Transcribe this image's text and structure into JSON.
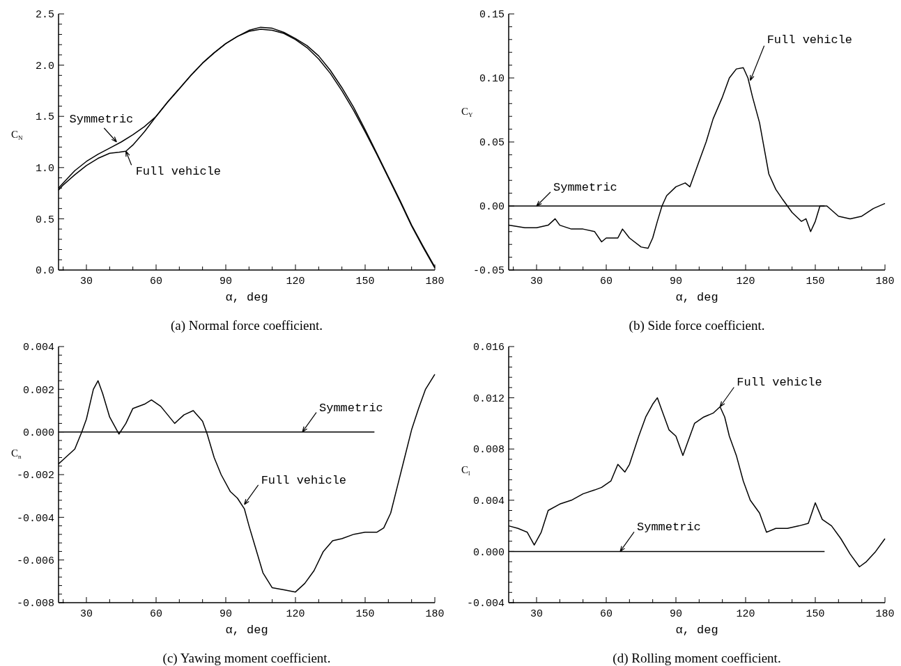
{
  "chart_data": [
    {
      "type": "line",
      "title": "(a) Normal force coefficient.",
      "xlabel": "α, deg",
      "ylabel": "C$_{N}$",
      "xlim": [
        18,
        180
      ],
      "ylim": [
        0,
        2.5
      ],
      "grid": false,
      "line_style": "solid",
      "marker": "none",
      "xticks": [
        {
          "value": 20,
          "label": null
        },
        30,
        {
          "value": 40,
          "label": null
        },
        {
          "value": 50,
          "label": null
        },
        60,
        {
          "value": 70,
          "label": null
        },
        {
          "value": 80,
          "label": null
        },
        90,
        {
          "value": 100,
          "label": null
        },
        {
          "value": 110,
          "label": null
        },
        120,
        {
          "value": 130,
          "label": null
        },
        {
          "value": 140,
          "label": null
        },
        150,
        {
          "value": 160,
          "label": null
        },
        {
          "value": 170,
          "label": null
        },
        180
      ],
      "yticks": [
        {
          "value": 0,
          "label": "0.0"
        },
        {
          "value": 0.1,
          "label": null
        },
        {
          "value": 0.2,
          "label": null
        },
        {
          "value": 0.3,
          "label": null
        },
        {
          "value": 0.4,
          "label": null
        },
        {
          "value": 0.5,
          "label": "0.5"
        },
        {
          "value": 0.6,
          "label": null
        },
        {
          "value": 0.7,
          "label": null
        },
        {
          "value": 0.8,
          "label": null
        },
        {
          "value": 0.9,
          "label": null
        },
        {
          "value": 1,
          "label": "1.0"
        },
        {
          "value": 1.1,
          "label": null
        },
        {
          "value": 1.2,
          "label": null
        },
        {
          "value": 1.3,
          "label": null
        },
        {
          "value": 1.4,
          "label": null
        },
        {
          "value": 1.5,
          "label": "1.5"
        },
        {
          "value": 1.6,
          "label": null
        },
        {
          "value": 1.7,
          "label": null
        },
        {
          "value": 1.8,
          "label": null
        },
        {
          "value": 1.9,
          "label": null
        },
        {
          "value": 2,
          "label": "2.0"
        },
        {
          "value": 2.1,
          "label": null
        },
        {
          "value": 2.2,
          "label": null
        },
        {
          "value": 2.3,
          "label": null
        },
        {
          "value": 2.4,
          "label": null
        },
        {
          "value": 2.5,
          "label": "2.5"
        }
      ],
      "series": [
        {
          "color": "#000000",
          "x": [
            18,
            20,
            25,
            30,
            35,
            40,
            44,
            47,
            50,
            55,
            60,
            65,
            70,
            75,
            80,
            85,
            90,
            95,
            100,
            105,
            110,
            115,
            120,
            125,
            130,
            135,
            140,
            145,
            150,
            155,
            160,
            165,
            170,
            175,
            180
          ],
          "values": [
            0.78,
            0.83,
            0.93,
            1.02,
            1.09,
            1.14,
            1.15,
            1.16,
            1.22,
            1.35,
            1.5,
            1.64,
            1.77,
            1.9,
            2.02,
            2.12,
            2.21,
            2.28,
            2.33,
            2.35,
            2.34,
            2.31,
            2.25,
            2.17,
            2.06,
            1.92,
            1.75,
            1.56,
            1.35,
            1.13,
            0.9,
            0.67,
            0.43,
            0.22,
            0.02
          ]
        },
        {
          "color": "#000000",
          "x": [
            18,
            20,
            25,
            30,
            35,
            40,
            45,
            50,
            55,
            60,
            65,
            70,
            75,
            80,
            85,
            90,
            95,
            100,
            105,
            110,
            115,
            120,
            125,
            130,
            135,
            140,
            145,
            150,
            155,
            160,
            165,
            170,
            175,
            180
          ],
          "values": [
            0.8,
            0.85,
            0.97,
            1.06,
            1.13,
            1.19,
            1.25,
            1.32,
            1.4,
            1.5,
            1.64,
            1.77,
            1.9,
            2.02,
            2.12,
            2.21,
            2.28,
            2.34,
            2.37,
            2.36,
            2.32,
            2.26,
            2.19,
            2.09,
            1.95,
            1.78,
            1.59,
            1.37,
            1.14,
            0.91,
            0.68,
            0.44,
            0.23,
            0.03
          ]
        }
      ],
      "annotations": [
        {
          "text": "Symmetric",
          "x": 43,
          "y": 1.25
        },
        {
          "text": "Full vehicle",
          "x": 47,
          "y": 1.16
        }
      ]
    },
    {
      "type": "line",
      "title": "(b) Side force coefficient.",
      "xlabel": "α, deg",
      "ylabel": "C$_{Y}$",
      "xlim": [
        18,
        180
      ],
      "ylim": [
        -0.05,
        0.15
      ],
      "grid": false,
      "line_style": "solid",
      "marker": "none",
      "xticks": [
        {
          "value": 20,
          "label": null
        },
        30,
        {
          "value": 40,
          "label": null
        },
        {
          "value": 50,
          "label": null
        },
        60,
        {
          "value": 70,
          "label": null
        },
        {
          "value": 80,
          "label": null
        },
        90,
        {
          "value": 100,
          "label": null
        },
        {
          "value": 110,
          "label": null
        },
        120,
        {
          "value": 130,
          "label": null
        },
        {
          "value": 140,
          "label": null
        },
        150,
        {
          "value": 160,
          "label": null
        },
        {
          "value": 170,
          "label": null
        },
        180
      ],
      "yticks": [
        {
          "value": -0.05,
          "label": "-0.05"
        },
        {
          "value": -0.04,
          "label": null
        },
        {
          "value": -0.03,
          "label": null
        },
        {
          "value": -0.02,
          "label": null
        },
        {
          "value": -0.01,
          "label": null
        },
        {
          "value": 0,
          "label": "0.00"
        },
        {
          "value": 0.01,
          "label": null
        },
        {
          "value": 0.02,
          "label": null
        },
        {
          "value": 0.03,
          "label": null
        },
        {
          "value": 0.04,
          "label": null
        },
        {
          "value": 0.05,
          "label": "0.05"
        },
        {
          "value": 0.06,
          "label": null
        },
        {
          "value": 0.07,
          "label": null
        },
        {
          "value": 0.08,
          "label": null
        },
        {
          "value": 0.09,
          "label": null
        },
        {
          "value": 0.1,
          "label": "0.10"
        },
        {
          "value": 0.11,
          "label": null
        },
        {
          "value": 0.12,
          "label": null
        },
        {
          "value": 0.13,
          "label": null
        },
        {
          "value": 0.14,
          "label": null
        },
        {
          "value": 0.15,
          "label": "0.15"
        }
      ],
      "series": [
        {
          "color": "#000000",
          "x": [
            18,
            25,
            30,
            35,
            38,
            40,
            45,
            50,
            55,
            58,
            60,
            65,
            67,
            70,
            75,
            78,
            80,
            82,
            84,
            86,
            90,
            94,
            96,
            98,
            100,
            103,
            106,
            110,
            113,
            116,
            119,
            121,
            123,
            126,
            128,
            130,
            133,
            136,
            140,
            144,
            146,
            148,
            150,
            152,
            155,
            160,
            165,
            170,
            175,
            180
          ],
          "values": [
            -0.015,
            -0.017,
            -0.017,
            -0.015,
            -0.01,
            -0.015,
            -0.018,
            -0.018,
            -0.02,
            -0.028,
            -0.025,
            -0.025,
            -0.018,
            -0.025,
            -0.032,
            -0.033,
            -0.025,
            -0.012,
            0,
            0.008,
            0.015,
            0.018,
            0.015,
            0.025,
            0.035,
            0.05,
            0.068,
            0.085,
            0.1,
            0.107,
            0.108,
            0.1,
            0.085,
            0.065,
            0.045,
            0.025,
            0.013,
            0.005,
            -0.005,
            -0.012,
            -0.01,
            -0.02,
            -0.012,
            0,
            0,
            -0.008,
            -0.01,
            -0.008,
            -0.002,
            0.002
          ]
        },
        {
          "color": "#000000",
          "x": [
            18,
            154
          ],
          "values": [
            0,
            0
          ]
        }
      ],
      "annotations": [
        {
          "text": "Symmetric",
          "x": 30,
          "y": 0
        },
        {
          "text": "Full vehicle",
          "x": 122,
          "y": 0.098
        }
      ]
    },
    {
      "type": "line",
      "title": "(c) Yawing moment coefficient.",
      "xlabel": "α, deg",
      "ylabel": "C$_{n}$",
      "xlim": [
        18,
        180
      ],
      "ylim": [
        -0.008,
        0.004
      ],
      "grid": false,
      "line_style": "solid",
      "marker": "none",
      "xticks": [
        {
          "value": 20,
          "label": null
        },
        30,
        {
          "value": 40,
          "label": null
        },
        {
          "value": 50,
          "label": null
        },
        60,
        {
          "value": 70,
          "label": null
        },
        {
          "value": 80,
          "label": null
        },
        90,
        {
          "value": 100,
          "label": null
        },
        {
          "value": 110,
          "label": null
        },
        120,
        {
          "value": 130,
          "label": null
        },
        {
          "value": 140,
          "label": null
        },
        150,
        {
          "value": 160,
          "label": null
        },
        {
          "value": 170,
          "label": null
        },
        180
      ],
      "yticks": [
        {
          "value": -0.008,
          "label": "-0.008"
        },
        {
          "value": -0.0076,
          "label": null
        },
        {
          "value": -0.0072,
          "label": null
        },
        {
          "value": -0.0068,
          "label": null
        },
        {
          "value": -0.0064,
          "label": null
        },
        {
          "value": -0.006,
          "label": "-0.006"
        },
        {
          "value": -0.0056,
          "label": null
        },
        {
          "value": -0.0052,
          "label": null
        },
        {
          "value": -0.0048,
          "label": null
        },
        {
          "value": -0.0044,
          "label": null
        },
        {
          "value": -0.004,
          "label": "-0.004"
        },
        {
          "value": -0.0036,
          "label": null
        },
        {
          "value": -0.0032,
          "label": null
        },
        {
          "value": -0.0028,
          "label": null
        },
        {
          "value": -0.0024,
          "label": null
        },
        {
          "value": -0.002,
          "label": "-0.002"
        },
        {
          "value": -0.0016,
          "label": null
        },
        {
          "value": -0.0012,
          "label": null
        },
        {
          "value": -0.0008,
          "label": null
        },
        {
          "value": -0.0004,
          "label": null
        },
        {
          "value": 0,
          "label": "0.000"
        },
        {
          "value": 0.0004,
          "label": null
        },
        {
          "value": 0.0008,
          "label": null
        },
        {
          "value": 0.0012,
          "label": null
        },
        {
          "value": 0.0016,
          "label": null
        },
        {
          "value": 0.002,
          "label": "0.002"
        },
        {
          "value": 0.0024,
          "label": null
        },
        {
          "value": 0.0028,
          "label": null
        },
        {
          "value": 0.0032,
          "label": null
        },
        {
          "value": 0.0036,
          "label": null
        },
        {
          "value": 0.004,
          "label": "0.004"
        }
      ],
      "series": [
        {
          "color": "#000000",
          "x": [
            18,
            20,
            25,
            28,
            30,
            33,
            35,
            37,
            40,
            44,
            47,
            50,
            55,
            58,
            62,
            65,
            68,
            72,
            76,
            80,
            82,
            85,
            88,
            92,
            95,
            98,
            100,
            103,
            106,
            110,
            115,
            120,
            124,
            128,
            132,
            136,
            140,
            145,
            150,
            155,
            158,
            161,
            164,
            167,
            170,
            173,
            176,
            180
          ],
          "values": [
            -0.0015,
            -0.0013,
            -0.0008,
            0,
            0.0006,
            0.002,
            0.0024,
            0.0018,
            0.0007,
            -0.0001,
            0.0004,
            0.0011,
            0.0013,
            0.0015,
            0.0012,
            0.0008,
            0.0004,
            0.0008,
            0.001,
            0.0005,
            -0.0001,
            -0.0012,
            -0.002,
            -0.0028,
            -0.0031,
            -0.0036,
            -0.0044,
            -0.0055,
            -0.0066,
            -0.0073,
            -0.0074,
            -0.0075,
            -0.0071,
            -0.0065,
            -0.0056,
            -0.0051,
            -0.005,
            -0.0048,
            -0.0047,
            -0.0047,
            -0.0045,
            -0.0038,
            -0.0025,
            -0.0012,
            0.0001,
            0.0011,
            0.002,
            0.0027
          ]
        },
        {
          "color": "#000000",
          "x": [
            18,
            154
          ],
          "values": [
            0,
            0
          ]
        }
      ],
      "annotations": [
        {
          "text": "Symmetric",
          "x": 123,
          "y": 0
        },
        {
          "text": "Full vehicle",
          "x": 98,
          "y": -0.0034
        }
      ]
    },
    {
      "type": "line",
      "title": "(d) Rolling moment coefficient.",
      "xlabel": "α, deg",
      "ylabel": "C$_{l}$",
      "xlim": [
        18,
        180
      ],
      "ylim": [
        -0.004,
        0.016
      ],
      "grid": false,
      "line_style": "solid",
      "marker": "none",
      "xticks": [
        {
          "value": 20,
          "label": null
        },
        30,
        {
          "value": 40,
          "label": null
        },
        {
          "value": 50,
          "label": null
        },
        60,
        {
          "value": 70,
          "label": null
        },
        {
          "value": 80,
          "label": null
        },
        90,
        {
          "value": 100,
          "label": null
        },
        {
          "value": 110,
          "label": null
        },
        120,
        {
          "value": 130,
          "label": null
        },
        {
          "value": 140,
          "label": null
        },
        150,
        {
          "value": 160,
          "label": null
        },
        {
          "value": 170,
          "label": null
        },
        180
      ],
      "yticks": [
        {
          "value": -0.004,
          "label": "-0.004"
        },
        {
          "value": -0.0032,
          "label": null
        },
        {
          "value": -0.0024,
          "label": null
        },
        {
          "value": -0.0016,
          "label": null
        },
        {
          "value": -0.0008,
          "label": null
        },
        {
          "value": 0,
          "label": "0.000"
        },
        {
          "value": 0.0008,
          "label": null
        },
        {
          "value": 0.0016,
          "label": null
        },
        {
          "value": 0.0024,
          "label": null
        },
        {
          "value": 0.0032,
          "label": null
        },
        {
          "value": 0.004,
          "label": "0.004"
        },
        {
          "value": 0.0048,
          "label": null
        },
        {
          "value": 0.0056,
          "label": null
        },
        {
          "value": 0.0064,
          "label": null
        },
        {
          "value": 0.0072,
          "label": null
        },
        {
          "value": 0.008,
          "label": "0.008"
        },
        {
          "value": 0.0088,
          "label": null
        },
        {
          "value": 0.0096,
          "label": null
        },
        {
          "value": 0.0104,
          "label": null
        },
        {
          "value": 0.0112,
          "label": null
        },
        {
          "value": 0.012,
          "label": "0.012"
        },
        {
          "value": 0.0128,
          "label": null
        },
        {
          "value": 0.0136,
          "label": null
        },
        {
          "value": 0.0144,
          "label": null
        },
        {
          "value": 0.0152,
          "label": null
        },
        {
          "value": 0.016,
          "label": "0.016"
        }
      ],
      "series": [
        {
          "color": "#000000",
          "x": [
            18,
            22,
            26,
            29,
            32,
            35,
            40,
            45,
            50,
            55,
            58,
            62,
            65,
            68,
            70,
            74,
            77,
            80,
            82,
            84,
            87,
            90,
            93,
            95,
            98,
            102,
            106,
            109,
            111,
            113,
            116,
            119,
            122,
            126,
            129,
            133,
            138,
            143,
            147,
            150,
            153,
            157,
            161,
            165,
            169,
            172,
            176,
            180
          ],
          "values": [
            0.002,
            0.0018,
            0.0015,
            0.0005,
            0.0015,
            0.0032,
            0.0037,
            0.004,
            0.0045,
            0.0048,
            0.005,
            0.0055,
            0.0068,
            0.0062,
            0.0068,
            0.009,
            0.0105,
            0.0115,
            0.012,
            0.011,
            0.0095,
            0.009,
            0.0075,
            0.0085,
            0.01,
            0.0105,
            0.0108,
            0.0113,
            0.0105,
            0.009,
            0.0075,
            0.0055,
            0.004,
            0.003,
            0.0015,
            0.0018,
            0.0018,
            0.002,
            0.0022,
            0.0038,
            0.0025,
            0.002,
            0.001,
            -0.0002,
            -0.0012,
            -0.0008,
            0,
            0.001
          ]
        },
        {
          "color": "#000000",
          "x": [
            18,
            154
          ],
          "values": [
            0,
            0
          ]
        }
      ],
      "annotations": [
        {
          "text": "Symmetric",
          "x": 66,
          "y": 0
        },
        {
          "text": "Full vehicle",
          "x": 109,
          "y": 0.0113
        }
      ]
    }
  ]
}
